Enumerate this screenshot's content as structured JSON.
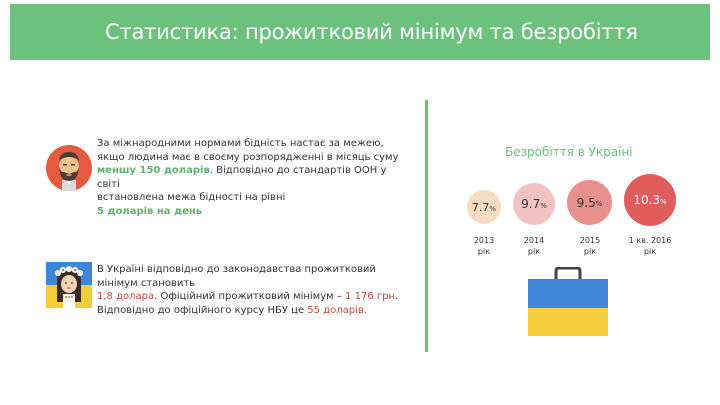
{
  "header": {
    "title": "Статистика: прожитковий мінімум та безробіття"
  },
  "poverty": {
    "line1": "За міжнародними нормами бідність настає за межею,",
    "line2": "якщо людина має в своєму розпорядженні в місяць суму",
    "highlight1": "меншу 150 доларів",
    "line3_rest": ". Відповідно до стандартів ООН у світі",
    "line4": "встановлена межа бідності на рівні",
    "highlight2": "5 доларів на день"
  },
  "subsistence": {
    "line1": "В Україні відповідно до законодавства прожитковий",
    "line2": "мінімум становить",
    "value_usd": "1,8 долара",
    "text_mid": ". Офіційний прожитковий мінімум – ",
    "value_uah": "1 176 грн",
    "dot": ".",
    "line4_start": "Відповідно до офіційного курсу НБУ це ",
    "value_usd2": "55 доларів",
    "end": "."
  },
  "unemployment": {
    "title": "Безробіття в Україні",
    "items": [
      {
        "value": "7.7",
        "unit": "%",
        "year": "2013",
        "year_unit": "рік"
      },
      {
        "value": "9.7",
        "unit": "%",
        "year": "2014",
        "year_unit": "рік"
      },
      {
        "value": "9.5",
        "unit": "%",
        "year": "2015",
        "year_unit": "рік"
      },
      {
        "value": "10.3",
        "unit": "%",
        "year": "1 кв. 2016",
        "year_unit": "рік"
      }
    ]
  },
  "colors": {
    "accent_green": "#6cc27d",
    "highlight_red": "#c44a3c",
    "flag_blue": "#3f86d8",
    "flag_yellow": "#f5cc3a"
  },
  "icons": [
    "bearded-man-avatar-icon",
    "ukrainian-girl-avatar-icon",
    "briefcase-ukraine-flag-icon"
  ]
}
